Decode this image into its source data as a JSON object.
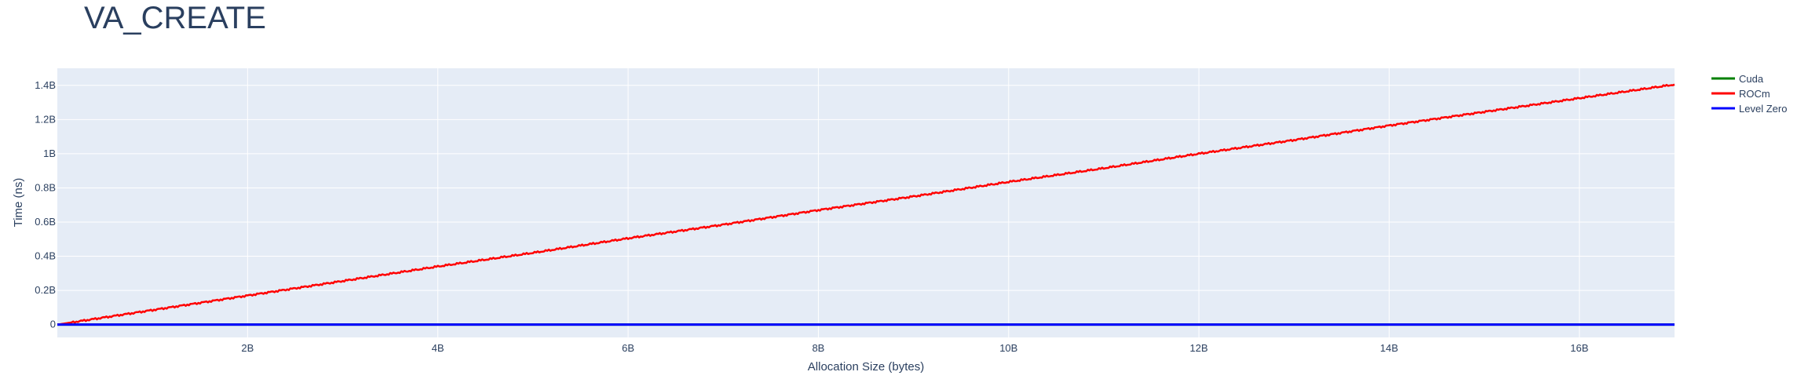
{
  "chart_data": {
    "type": "line",
    "title": "VA_CREATE",
    "xlabel": "Allocation Size (bytes)",
    "ylabel": "Time (ns)",
    "xlim": [
      0,
      17000000000
    ],
    "ylim": [
      -75000000,
      1500000000
    ],
    "x_ticks": [
      2000000000,
      4000000000,
      6000000000,
      8000000000,
      10000000000,
      12000000000,
      14000000000,
      16000000000
    ],
    "x_tick_labels": [
      "2B",
      "4B",
      "6B",
      "8B",
      "10B",
      "12B",
      "14B",
      "16B"
    ],
    "y_ticks": [
      0,
      200000000,
      400000000,
      600000000,
      800000000,
      1000000000,
      1200000000,
      1400000000
    ],
    "y_tick_labels": [
      "0",
      "0.2B",
      "0.4B",
      "0.6B",
      "0.8B",
      "1B",
      "1.2B",
      "1.4B"
    ],
    "grid": true,
    "legend_position": "top-right",
    "series": [
      {
        "name": "Cuda",
        "color": "#008000",
        "x": [
          0,
          17000000000
        ],
        "y": [
          0,
          0
        ]
      },
      {
        "name": "ROCm",
        "color": "#ff0000",
        "x": [
          0,
          1000000000,
          2000000000,
          3000000000,
          4000000000,
          5000000000,
          6000000000,
          7000000000,
          8000000000,
          9000000000,
          10000000000,
          11000000000,
          12000000000,
          13000000000,
          14000000000,
          15000000000,
          16000000000,
          17000000000
        ],
        "y": [
          0,
          85000000,
          170000000,
          255000000,
          340000000,
          420000000,
          505000000,
          585000000,
          670000000,
          750000000,
          835000000,
          915000000,
          1000000000,
          1080000000,
          1165000000,
          1245000000,
          1325000000,
          1405000000
        ]
      },
      {
        "name": "Level Zero",
        "color": "#0000ff",
        "x": [
          0,
          17000000000
        ],
        "y": [
          0,
          0
        ]
      }
    ]
  }
}
